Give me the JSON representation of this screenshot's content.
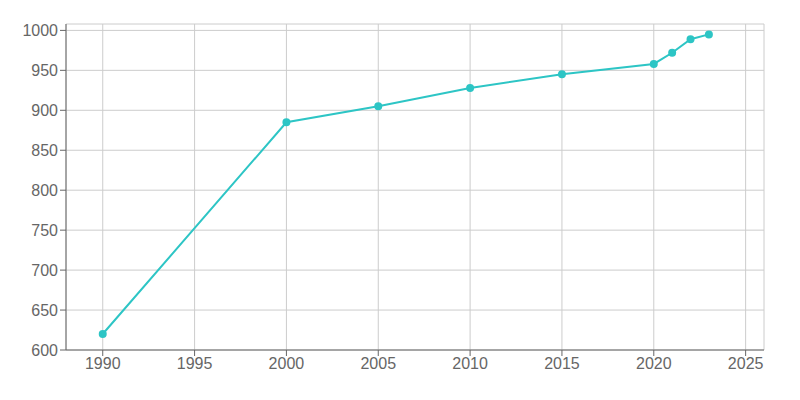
{
  "chart_data": {
    "type": "line",
    "x": [
      1990,
      2000,
      2005,
      2010,
      2015,
      2020,
      2021,
      2022,
      2023
    ],
    "values": [
      620,
      885,
      905,
      928,
      945,
      958,
      972,
      989,
      995
    ],
    "color": "#2dc5c5",
    "marker": "o",
    "xlim": [
      1988,
      2026
    ],
    "ylim": [
      600,
      1008
    ],
    "xticks": [
      1990,
      1995,
      2000,
      2005,
      2010,
      2015,
      2020,
      2025
    ],
    "yticks": [
      600,
      650,
      700,
      750,
      800,
      850,
      900,
      950,
      1000
    ],
    "grid": true
  }
}
